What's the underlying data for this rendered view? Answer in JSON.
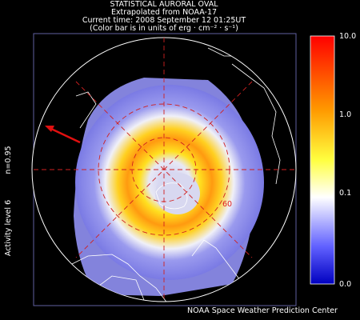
{
  "header": {
    "lines": [
      "STATISTICAL AURORAL OVAL",
      "Extrapolated from NOAA-17",
      "Current time: 2008 September 12 01:25UT",
      "(Color bar is in units of erg · cm⁻² · s⁻¹)"
    ]
  },
  "side_labels": [
    "n=0.95",
    "Activity level 6"
  ],
  "map": {
    "latitude_label": "60"
  },
  "colorbar": {
    "labels": [
      "10.0",
      "1.0",
      "0.1",
      "0.0"
    ]
  },
  "footer": {
    "credit": "NOAA Space Weather Prediction Center"
  }
}
